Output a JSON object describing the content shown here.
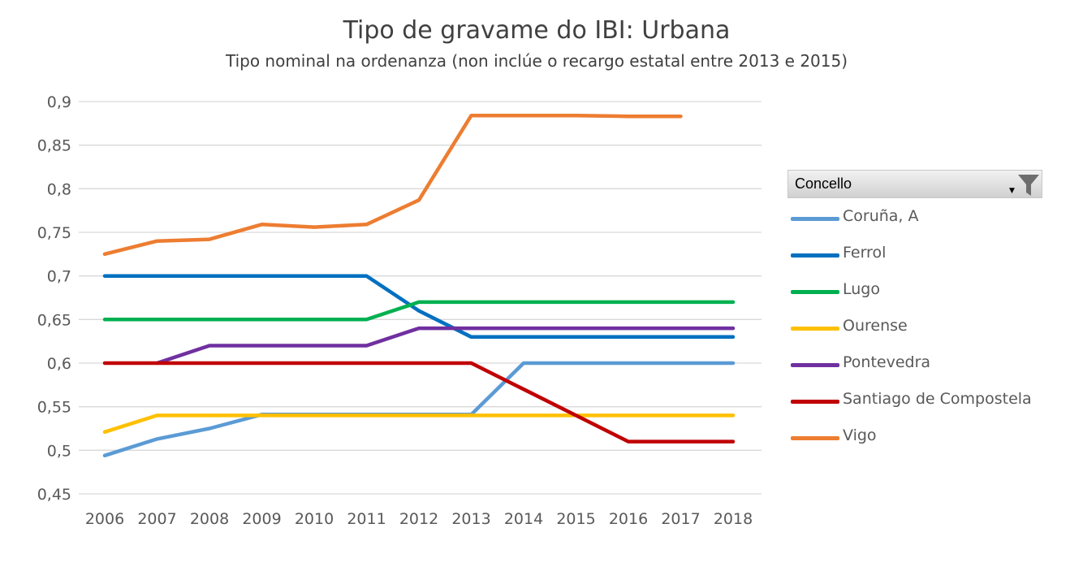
{
  "chart_data": {
    "type": "line",
    "title": "Tipo de gravame do IBI: Urbana",
    "subtitle": "Tipo nominal na ordenanza (non inclúe o recargo estatal entre 2013 e 2015)",
    "categories": [
      "2006",
      "2007",
      "2008",
      "2009",
      "2010",
      "2011",
      "2012",
      "2013",
      "2014",
      "2015",
      "2016",
      "2017",
      "2018"
    ],
    "ylim": [
      0.45,
      0.9
    ],
    "yticks": [
      "0,45",
      "0,5",
      "0,55",
      "0,6",
      "0,65",
      "0,7",
      "0,75",
      "0,8",
      "0,85",
      "0,9"
    ],
    "ytick_values": [
      0.45,
      0.5,
      0.55,
      0.6,
      0.65,
      0.7,
      0.75,
      0.8,
      0.85,
      0.9
    ],
    "grid": true,
    "legend_title": "Concello",
    "legend_position": "right",
    "series": [
      {
        "name": "Coruña, A",
        "color": "#5B9BD5",
        "values": [
          0.494,
          0.513,
          0.525,
          0.541,
          0.541,
          0.541,
          0.541,
          0.541,
          0.6,
          0.6,
          0.6,
          0.6,
          0.6
        ]
      },
      {
        "name": "Ferrol",
        "color": "#0070C0",
        "values": [
          0.7,
          0.7,
          0.7,
          0.7,
          0.7,
          0.7,
          0.66,
          0.63,
          0.63,
          0.63,
          0.63,
          0.63,
          0.63
        ]
      },
      {
        "name": "Lugo",
        "color": "#00B050",
        "values": [
          0.65,
          0.65,
          0.65,
          0.65,
          0.65,
          0.65,
          0.67,
          0.67,
          0.67,
          0.67,
          0.67,
          0.67,
          0.67
        ]
      },
      {
        "name": "Ourense",
        "color": "#FFC000",
        "values": [
          0.521,
          0.54,
          0.54,
          0.54,
          0.54,
          0.54,
          0.54,
          0.54,
          0.54,
          0.54,
          0.54,
          0.54,
          0.54
        ]
      },
      {
        "name": "Pontevedra",
        "color": "#7030A0",
        "values": [
          null,
          0.6,
          0.62,
          0.62,
          0.62,
          0.62,
          0.64,
          0.64,
          0.64,
          0.64,
          0.64,
          0.64,
          0.64
        ]
      },
      {
        "name": "Santiago de Compostela",
        "color": "#C00000",
        "values": [
          0.6,
          0.6,
          0.6,
          0.6,
          0.6,
          0.6,
          0.6,
          0.6,
          0.57,
          0.54,
          0.51,
          0.51,
          0.51
        ]
      },
      {
        "name": "Vigo",
        "color": "#ED7D31",
        "values": [
          0.725,
          0.74,
          0.742,
          0.759,
          0.756,
          0.759,
          0.787,
          0.884,
          0.884,
          0.884,
          0.883,
          0.883,
          null
        ]
      }
    ]
  }
}
